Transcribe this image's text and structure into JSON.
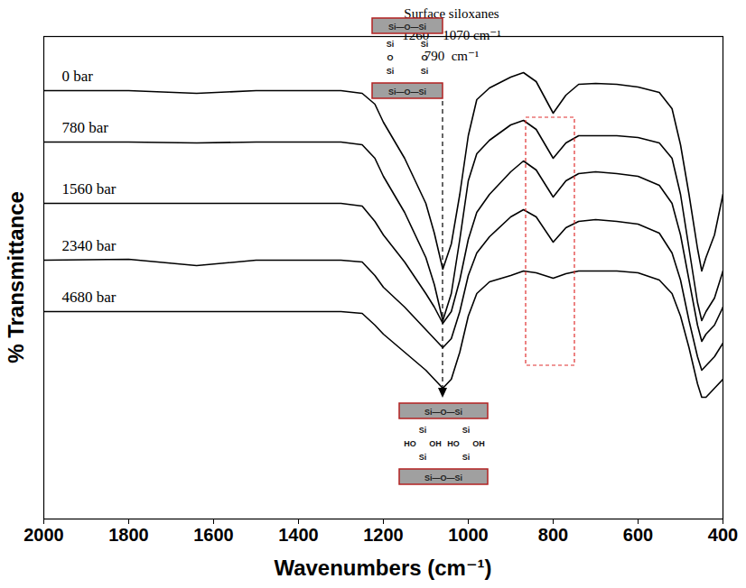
{
  "chart_data": {
    "type": "line",
    "x_label": "Wavenumbers (cm⁻¹)",
    "y_label": "% Transmittance",
    "xlim": [
      2000,
      400
    ],
    "xticks": [
      2000,
      1800,
      1600,
      1400,
      1200,
      1000,
      800,
      600,
      400
    ],
    "ylim": [
      0,
      107
    ],
    "tick_labels": "x",
    "grid": false,
    "annotations": [
      "Surface siloxanes",
      "1260 – 1070 cm⁻¹",
      "790  cm⁻¹"
    ],
    "structure_top": {
      "surface": "Si—O—Si",
      "bridge": [
        "Si",
        "O",
        "Si"
      ]
    },
    "structure_bottom": {
      "surface": "Si—O—Si",
      "bridge": [
        "Si",
        "HO",
        "OH",
        "Si"
      ]
    },
    "x": [
      2000,
      1800,
      1640,
      1500,
      1300,
      1250,
      1220,
      1200,
      1150,
      1100,
      1080,
      1060,
      1040,
      1020,
      1000,
      980,
      950,
      900,
      870,
      840,
      800,
      770,
      740,
      700,
      650,
      600,
      550,
      520,
      500,
      480,
      460,
      450,
      440,
      420,
      400
    ],
    "series": [
      {
        "name": "0 bar",
        "color": "#000000",
        "values": [
          95,
          95,
          94.4,
          95,
          95,
          94.4,
          92,
          88,
          80,
          70,
          63.4,
          55.4,
          61,
          72,
          85,
          93,
          95.6,
          98,
          99,
          97,
          90,
          94,
          96.4,
          96.6,
          96.4,
          95.8,
          94.6,
          91,
          83,
          72,
          60,
          55,
          58,
          63,
          72
        ]
      },
      {
        "name": "780 bar",
        "color": "#000000",
        "values": [
          83.6,
          83.6,
          83.4,
          83.6,
          83.6,
          83,
          80,
          76,
          68,
          58,
          52,
          44,
          50,
          62,
          75,
          81,
          84,
          87.4,
          88.4,
          86.4,
          80,
          83.4,
          85,
          85,
          85,
          84.6,
          83.4,
          80,
          72,
          60,
          48,
          44,
          46,
          49,
          55
        ]
      },
      {
        "name": "1560 bar",
        "color": "#000000",
        "values": [
          70,
          70,
          70,
          70,
          70,
          69.4,
          66,
          63,
          57,
          50,
          47,
          43.4,
          46,
          53,
          62,
          68,
          72,
          77,
          79.4,
          77.4,
          71.4,
          75,
          76.6,
          77,
          76.6,
          76,
          74,
          70,
          63,
          53,
          43,
          39.4,
          41,
          43,
          47
        ]
      },
      {
        "name": "2340 bar",
        "color": "#000000",
        "values": [
          57.4,
          57.6,
          56.2,
          57.4,
          57.4,
          57,
          54,
          51.4,
          47,
          42,
          40,
          38,
          40,
          46,
          54,
          59,
          62.6,
          67,
          68.6,
          67,
          61.4,
          64.6,
          66,
          66.4,
          66,
          65.4,
          63.4,
          59,
          53,
          44,
          36,
          33,
          34,
          36,
          39
        ]
      },
      {
        "name": "4680 bar",
        "color": "#000000",
        "values": [
          46,
          46,
          46,
          46,
          46,
          45.6,
          43,
          41,
          37,
          33,
          31,
          29,
          31,
          37,
          45,
          50,
          52.6,
          54,
          55,
          54.6,
          53.4,
          54.4,
          55,
          55,
          55,
          54.6,
          53,
          50,
          45,
          38,
          30,
          27,
          27,
          29,
          31
        ]
      }
    ]
  }
}
